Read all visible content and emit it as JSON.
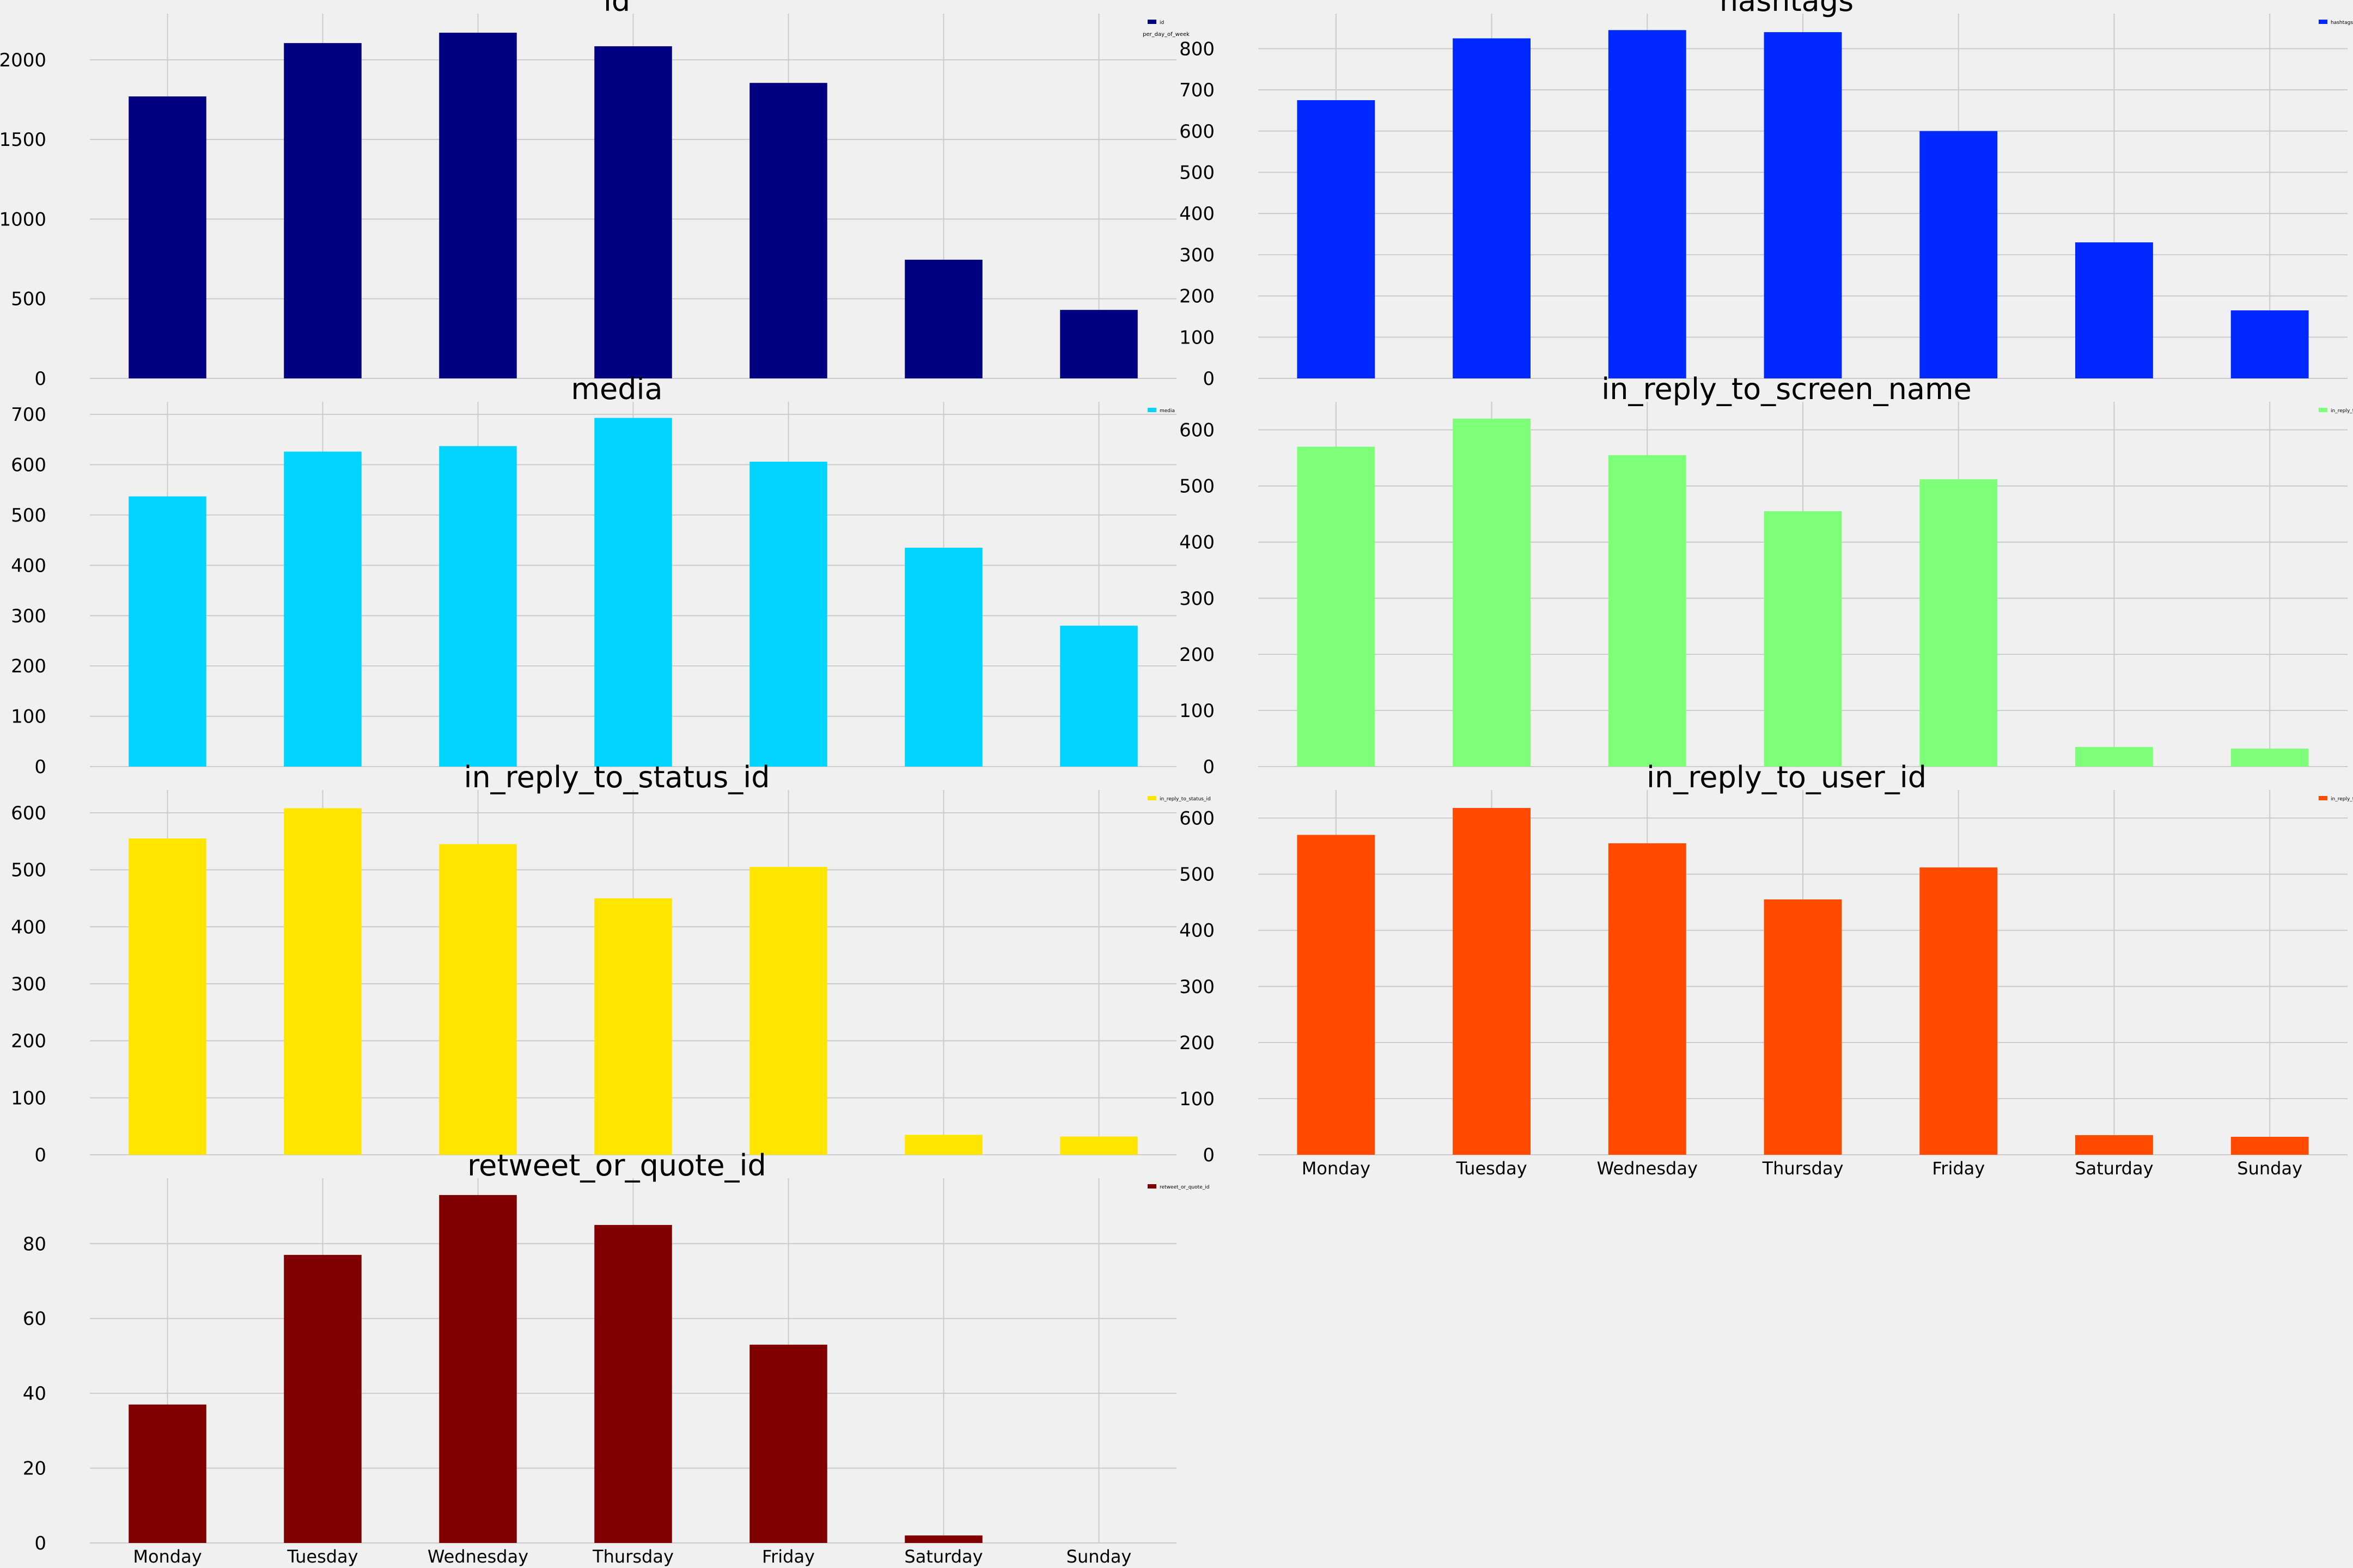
{
  "figure": {
    "background": "#f0f0f0",
    "grid_color": "#cbcbcb",
    "category_labels": [
      "Monday",
      "Tuesday",
      "Wednesday",
      "Thursday",
      "Friday",
      "Saturday",
      "Sunday"
    ]
  },
  "chart_data": [
    {
      "type": "bar",
      "title": "id",
      "categories": [
        "Monday",
        "Tuesday",
        "Wednesday",
        "Thursday",
        "Friday",
        "Saturday",
        "Sunday"
      ],
      "series": [
        {
          "name": "id",
          "values": [
            1770,
            2105,
            2170,
            2085,
            1855,
            745,
            430
          ]
        }
      ],
      "color": "#000080",
      "ylim": [
        0,
        2290
      ],
      "yticks": [
        0,
        500,
        1000,
        1500,
        2000
      ],
      "legend": {
        "position": "top-right",
        "title": "per_day_of_week"
      },
      "show_xticklabels": false,
      "grid": true
    },
    {
      "type": "bar",
      "title": "hashtags",
      "categories": [
        "Monday",
        "Tuesday",
        "Wednesday",
        "Thursday",
        "Friday",
        "Saturday",
        "Sunday"
      ],
      "series": [
        {
          "name": "hashtags",
          "values": [
            675,
            825,
            845,
            840,
            600,
            330,
            165
          ]
        }
      ],
      "color": "#0028ff",
      "ylim": [
        0,
        885
      ],
      "yticks": [
        0,
        100,
        200,
        300,
        400,
        500,
        600,
        700,
        800
      ],
      "legend": {
        "position": "top-right"
      },
      "show_xticklabels": false,
      "grid": true
    },
    {
      "type": "bar",
      "title": "media",
      "categories": [
        "Monday",
        "Tuesday",
        "Wednesday",
        "Thursday",
        "Friday",
        "Saturday",
        "Sunday"
      ],
      "series": [
        {
          "name": "media",
          "values": [
            537,
            626,
            637,
            693,
            606,
            435,
            280
          ]
        }
      ],
      "color": "#00d4ff",
      "ylim": [
        0,
        725
      ],
      "yticks": [
        0,
        100,
        200,
        300,
        400,
        500,
        600,
        700
      ],
      "legend": {
        "position": "top-right"
      },
      "show_xticklabels": false,
      "grid": true
    },
    {
      "type": "bar",
      "title": "in_reply_to_screen_name",
      "categories": [
        "Monday",
        "Tuesday",
        "Wednesday",
        "Thursday",
        "Friday",
        "Saturday",
        "Sunday"
      ],
      "series": [
        {
          "name": "in_reply_to_screen_name",
          "values": [
            570,
            620,
            555,
            455,
            512,
            35,
            32
          ]
        }
      ],
      "color": "#7dff7a",
      "ylim": [
        0,
        650
      ],
      "yticks": [
        0,
        100,
        200,
        300,
        400,
        500,
        600
      ],
      "legend": {
        "position": "top-right"
      },
      "show_xticklabels": false,
      "grid": true
    },
    {
      "type": "bar",
      "title": "in_reply_to_status_id",
      "categories": [
        "Monday",
        "Tuesday",
        "Wednesday",
        "Thursday",
        "Friday",
        "Saturday",
        "Sunday"
      ],
      "series": [
        {
          "name": "in_reply_to_status_id",
          "values": [
            555,
            608,
            545,
            450,
            505,
            35,
            32
          ]
        }
      ],
      "color": "#ffe500",
      "ylim": [
        0,
        640
      ],
      "yticks": [
        0,
        100,
        200,
        300,
        400,
        500,
        600
      ],
      "legend": {
        "position": "top-right"
      },
      "show_xticklabels": false,
      "grid": true
    },
    {
      "type": "bar",
      "title": "in_reply_to_user_id",
      "categories": [
        "Monday",
        "Tuesday",
        "Wednesday",
        "Thursday",
        "Friday",
        "Saturday",
        "Sunday"
      ],
      "series": [
        {
          "name": "in_reply_to_user_id",
          "values": [
            570,
            618,
            555,
            455,
            512,
            35,
            32
          ]
        }
      ],
      "color": "#ff4a00",
      "ylim": [
        0,
        650
      ],
      "yticks": [
        0,
        100,
        200,
        300,
        400,
        500,
        600
      ],
      "legend": {
        "position": "top-right"
      },
      "show_xticklabels": true,
      "grid": true
    },
    {
      "type": "bar",
      "title": "retweet_or_quote_id",
      "categories": [
        "Monday",
        "Tuesday",
        "Wednesday",
        "Thursday",
        "Friday",
        "Saturday",
        "Sunday"
      ],
      "series": [
        {
          "name": "retweet_or_quote_id",
          "values": [
            37,
            77,
            93,
            85,
            53,
            2,
            0
          ]
        }
      ],
      "color": "#800000",
      "ylim": [
        0,
        97.5
      ],
      "yticks": [
        0,
        20,
        40,
        60,
        80
      ],
      "legend": {
        "position": "top-right"
      },
      "show_xticklabels": true,
      "grid": true
    }
  ]
}
